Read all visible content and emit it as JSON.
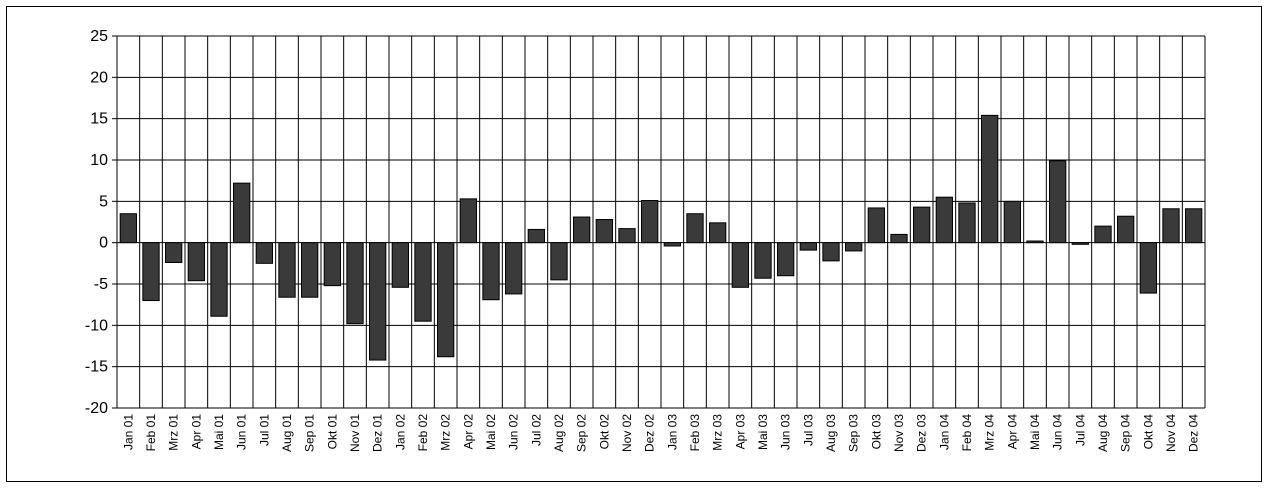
{
  "chart_data": {
    "type": "bar",
    "title": "",
    "xlabel": "",
    "ylabel": "",
    "ylim": [
      -20,
      25
    ],
    "yticks": [
      25,
      20,
      15,
      10,
      5,
      0,
      -5,
      -10,
      -15,
      -20
    ],
    "grid": "vertical lines between categories, horizontal lines at each y tick",
    "legend": "none",
    "colors": {
      "bar": "#3a3a3a",
      "grid": "#000000",
      "background": "#ffffff"
    },
    "categories": [
      "Jan 01",
      "Feb 01",
      "Mrz 01",
      "Apr 01",
      "Mai 01",
      "Jun 01",
      "Jul 01",
      "Aug 01",
      "Sep 01",
      "Okt 01",
      "Nov 01",
      "Dez 01",
      "Jan 02",
      "Feb 02",
      "Mrz 02",
      "Apr 02",
      "Mai 02",
      "Jun 02",
      "Jul 02",
      "Aug 02",
      "Sep 02",
      "Okt 02",
      "Nov 02",
      "Dez 02",
      "Jan 03",
      "Feb 03",
      "Mrz 03",
      "Apr 03",
      "Mai 03",
      "Jun 03",
      "Jul 03",
      "Aug 03",
      "Sep 03",
      "Okt 03",
      "Nov 03",
      "Dez 03",
      "Jan 04",
      "Feb 04",
      "Mrz 04",
      "Apr 04",
      "Mai 04",
      "Jun 04",
      "Jul 04",
      "Aug 04",
      "Sep 04",
      "Okt 04",
      "Nov 04",
      "Dez 04"
    ],
    "values": [
      3.5,
      -7.0,
      -2.4,
      -4.6,
      -8.9,
      7.2,
      -2.5,
      -6.6,
      -6.6,
      -5.2,
      -9.8,
      -14.2,
      -5.4,
      -9.5,
      -13.8,
      5.3,
      -6.9,
      -6.2,
      1.6,
      -4.5,
      3.1,
      2.8,
      1.7,
      5.1,
      -0.4,
      3.5,
      2.4,
      -5.4,
      -4.3,
      -4.0,
      -0.9,
      -2.2,
      -1.0,
      4.2,
      1.0,
      4.3,
      5.5,
      4.8,
      15.4,
      5.0,
      0.2,
      9.9,
      -0.2,
      2.0,
      3.2,
      -6.1,
      4.1,
      4.1
    ]
  }
}
